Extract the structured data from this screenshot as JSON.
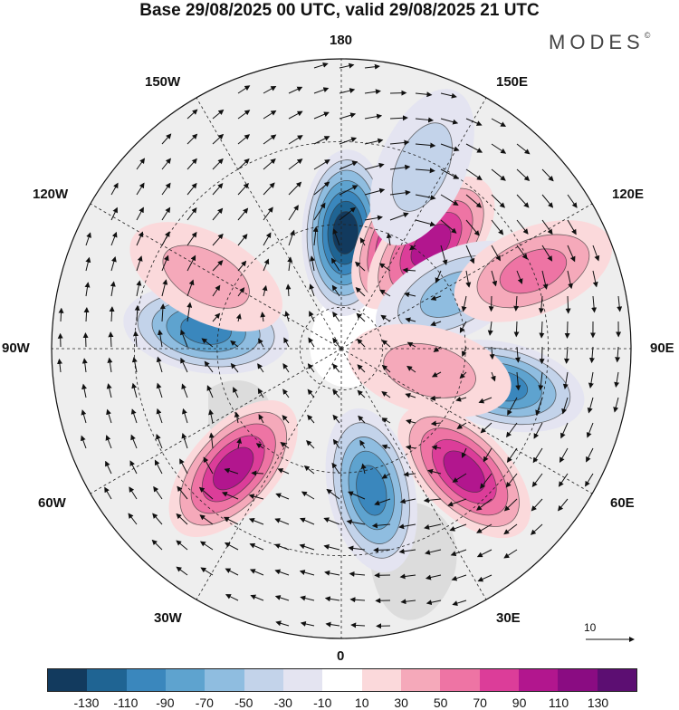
{
  "title": "Base 29/08/2025 00 UTC, valid 29/08/2025 21 UTC",
  "logo": "MODES",
  "logo_mark": "©",
  "longitude_labels": {
    "lon_180": "180",
    "lon_150e": "150E",
    "lon_120e": "120E",
    "lon_90e": "90E",
    "lon_60e": "60E",
    "lon_30e": "30E",
    "lon_0": "0",
    "lon_30w": "30W",
    "lon_60w": "60W",
    "lon_90w": "90W",
    "lon_120w": "120W",
    "lon_150w": "150W"
  },
  "vector_reference": "10",
  "colorbar": {
    "colors": [
      "#123a5e",
      "#1f6493",
      "#3a87bd",
      "#5ea3cf",
      "#8fbde0",
      "#c3d3ea",
      "#e4e4f1",
      "#ffffff",
      "#fbd9db",
      "#f5a9ba",
      "#ee74a4",
      "#dc3d99",
      "#b2168e",
      "#8a0c82",
      "#5c0e72"
    ],
    "ticks": [
      "-130",
      "-110",
      "-90",
      "-70",
      "-50",
      "-30",
      "-10",
      "10",
      "30",
      "50",
      "70",
      "90",
      "110",
      "130"
    ]
  },
  "anomaly_centers": [
    {
      "name": "low-180",
      "lon": 178,
      "lat": 62,
      "value": -130
    },
    {
      "name": "high-150e",
      "lon": 150,
      "lat": 58,
      "value": 110
    },
    {
      "name": "high-140w",
      "lon": 139,
      "lat": 57,
      "value": 90
    },
    {
      "name": "low-120w",
      "lon": 116,
      "lat": 60,
      "value": -50
    },
    {
      "name": "high-115w",
      "lon": 112,
      "lat": 40,
      "value": 50
    },
    {
      "name": "low-150w",
      "lon": 156,
      "lat": 42,
      "value": -30
    },
    {
      "name": "low-90w",
      "lon": 77,
      "lat": 50,
      "value": -90
    },
    {
      "name": "high-80w",
      "lon": 76,
      "lat": 68,
      "value": 30
    },
    {
      "name": "high-50w",
      "lon": 45,
      "lat": 48,
      "value": 90
    },
    {
      "name": "low-10w",
      "lon": 12,
      "lat": 55,
      "value": -90
    },
    {
      "name": "high-50e",
      "lon": -42,
      "lat": 51,
      "value": 90
    },
    {
      "name": "low-90e",
      "lon": -98,
      "lat": 57,
      "value": -90
    },
    {
      "name": "high-105e",
      "lon": -118,
      "lat": 53,
      "value": 30
    }
  ]
}
